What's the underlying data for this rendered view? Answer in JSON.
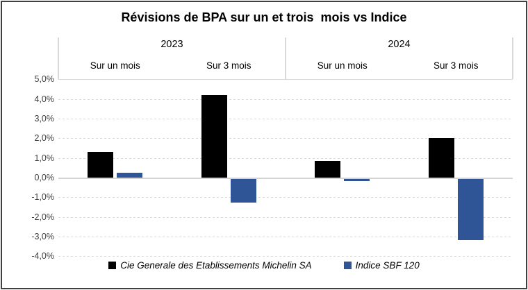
{
  "chart_data": {
    "type": "bar",
    "title": "Révisions de BPA sur un et trois  mois vs Indice",
    "value_unit": "percent",
    "groups": [
      {
        "label": "2023",
        "columns": [
          "Sur un mois",
          "Sur 3 mois"
        ]
      },
      {
        "label": "2024",
        "columns": [
          "Sur un mois",
          "Sur 3 mois"
        ]
      }
    ],
    "series": [
      {
        "name": "Cie Generale des Etablissements Michelin SA",
        "color": "#000000",
        "values": [
          1.3,
          4.2,
          0.85,
          2.0
        ]
      },
      {
        "name": "Indice SBF 120",
        "color": "#2F5597",
        "values": [
          0.25,
          -1.2,
          -0.1,
          -3.1
        ]
      }
    ],
    "y_axis": {
      "min": -4,
      "max": 5,
      "step": 1,
      "tick_labels": [
        "5,0%",
        "4,0%",
        "3,0%",
        "2,0%",
        "1,0%",
        "0,0%",
        "-1,0%",
        "-2,0%",
        "-3,0%",
        "-4,0%"
      ]
    },
    "grid": "horizontal-dashed",
    "legend_position": "bottom",
    "colors": {
      "bar_michelin": "#000000",
      "bar_indice": "#2F5597",
      "gridline": "#D9D9D9",
      "zero_axis": "#D3D3D3",
      "header_divider": "#D9D9D9",
      "outer_border": "#404040",
      "tick_text": "#404040"
    }
  }
}
